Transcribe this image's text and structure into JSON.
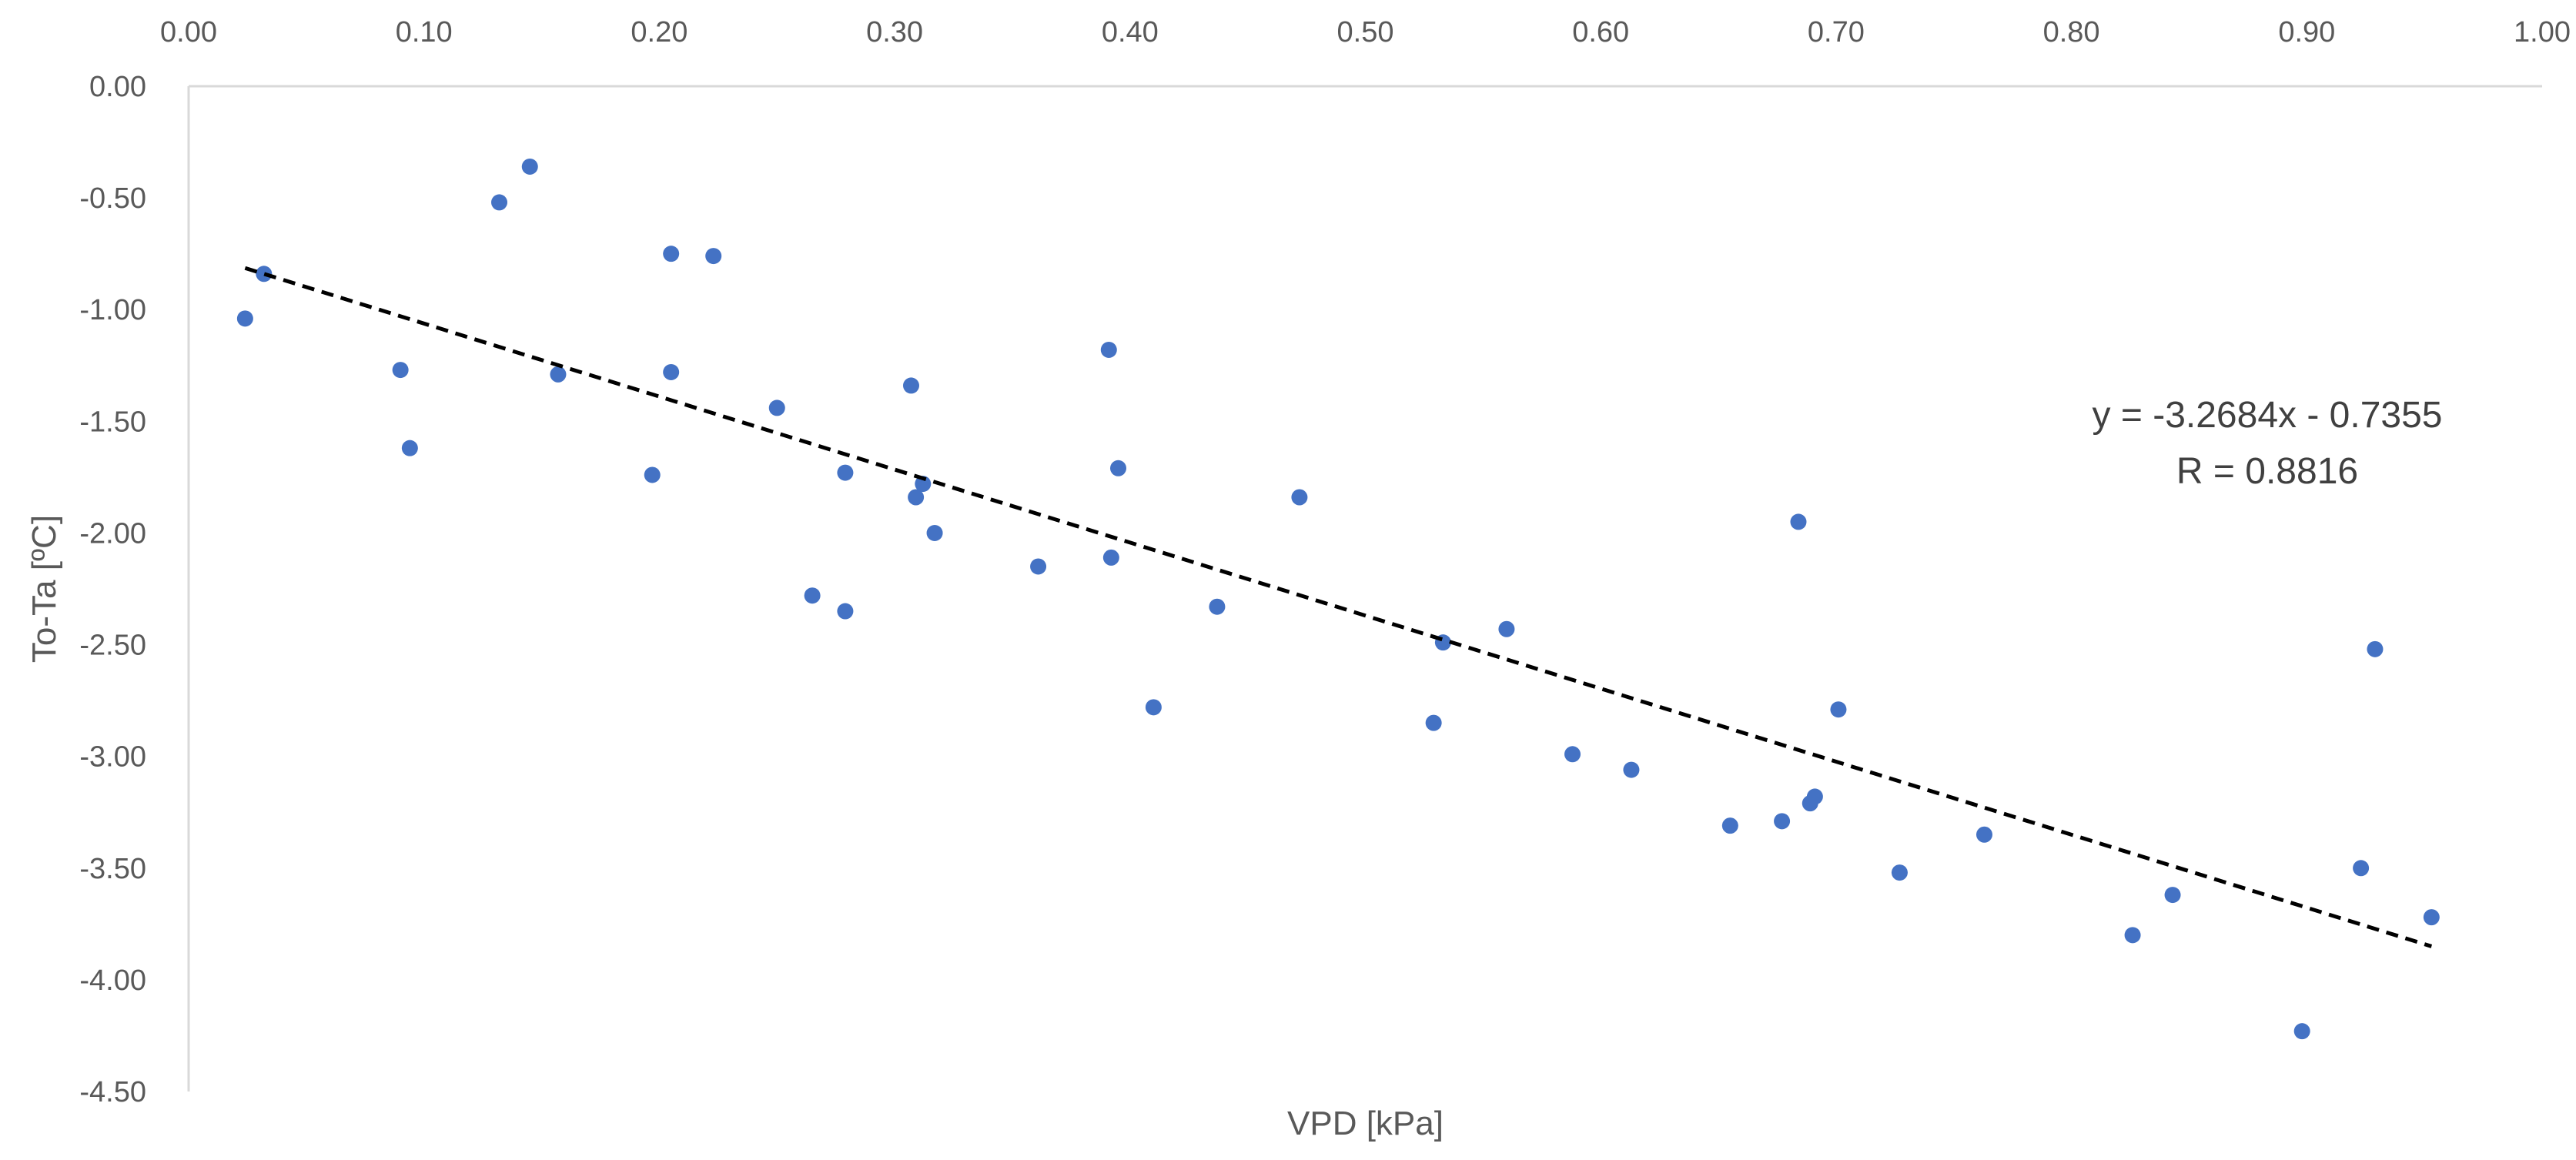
{
  "chart_data": {
    "type": "scatter",
    "title": "",
    "xlabel": "VPD [kPa]",
    "ylabel": "To-Ta [ºC]",
    "xlim": [
      0,
      1
    ],
    "ylim": [
      -4.5,
      0
    ],
    "x_axis_position": "top",
    "grid": false,
    "legend": "none",
    "x_ticks": [
      "0.00",
      "0.10",
      "0.20",
      "0.30",
      "0.40",
      "0.50",
      "0.60",
      "0.70",
      "0.80",
      "0.90",
      "1.00"
    ],
    "y_ticks": [
      "0.00",
      "-0.50",
      "-1.00",
      "-1.50",
      "-2.00",
      "-2.50",
      "-3.00",
      "-3.50",
      "-4.00",
      "-4.50"
    ],
    "point_color": "#4472c4",
    "series": [
      {
        "points": [
          [
            0.024,
            -1.04
          ],
          [
            0.032,
            -0.84
          ],
          [
            0.09,
            -1.27
          ],
          [
            0.094,
            -1.62
          ],
          [
            0.132,
            -0.52
          ],
          [
            0.145,
            -0.36
          ],
          [
            0.157,
            -1.29
          ],
          [
            0.197,
            -1.74
          ],
          [
            0.205,
            -0.75
          ],
          [
            0.205,
            -1.28
          ],
          [
            0.223,
            -0.76
          ],
          [
            0.25,
            -1.44
          ],
          [
            0.265,
            -2.28
          ],
          [
            0.279,
            -1.73
          ],
          [
            0.279,
            -2.35
          ],
          [
            0.307,
            -1.34
          ],
          [
            0.309,
            -1.84
          ],
          [
            0.312,
            -1.78
          ],
          [
            0.317,
            -2.0
          ],
          [
            0.361,
            -2.15
          ],
          [
            0.391,
            -1.18
          ],
          [
            0.392,
            -2.11
          ],
          [
            0.395,
            -1.71
          ],
          [
            0.41,
            -2.78
          ],
          [
            0.437,
            -2.33
          ],
          [
            0.472,
            -1.84
          ],
          [
            0.529,
            -2.85
          ],
          [
            0.533,
            -2.49
          ],
          [
            0.56,
            -2.43
          ],
          [
            0.588,
            -2.99
          ],
          [
            0.613,
            -3.06
          ],
          [
            0.655,
            -3.31
          ],
          [
            0.677,
            -3.29
          ],
          [
            0.684,
            -1.95
          ],
          [
            0.689,
            -3.21
          ],
          [
            0.691,
            -3.18
          ],
          [
            0.701,
            -2.79
          ],
          [
            0.727,
            -3.52
          ],
          [
            0.763,
            -3.35
          ],
          [
            0.826,
            -3.8
          ],
          [
            0.843,
            -3.62
          ],
          [
            0.898,
            -4.23
          ],
          [
            0.923,
            -3.5
          ],
          [
            0.929,
            -2.52
          ],
          [
            0.953,
            -3.72
          ]
        ]
      }
    ],
    "trendline": {
      "type": "linear",
      "slope": -3.2684,
      "intercept": -0.7355,
      "x_range": [
        0.024,
        0.953
      ],
      "style": "dashed",
      "color": "#000000"
    },
    "annotations": {
      "equation": "y = -3.2684x - 0.7355",
      "r_value": "R = 0.8816"
    }
  }
}
